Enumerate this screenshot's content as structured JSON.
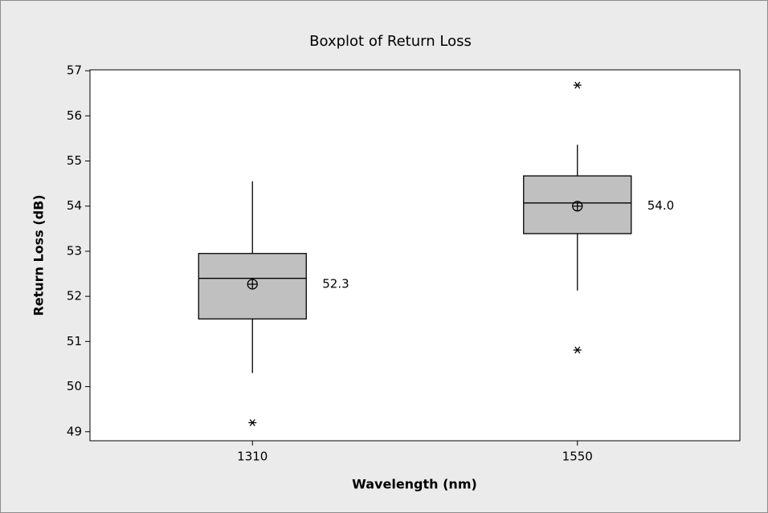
{
  "chart_data": {
    "type": "boxplot",
    "title": "Boxplot of Return Loss",
    "xlabel": "Wavelength (nm)",
    "ylabel": "Return Loss (dB)",
    "categories": [
      "1310",
      "1550"
    ],
    "whisker_low": [
      50.3,
      52.13
    ],
    "q1": [
      51.5,
      53.39
    ],
    "median": [
      52.4,
      54.07
    ],
    "q3": [
      52.95,
      54.67
    ],
    "whisker_high": [
      54.55,
      55.36
    ],
    "outliers": [
      [
        49.2
      ],
      [
        56.68,
        50.81
      ]
    ],
    "values": [
      52.27,
      54.0
    ],
    "value_labels": [
      "52.3",
      "54.0"
    ],
    "color": "#c0c0c0",
    "ylim": [
      48.8,
      57.02
    ],
    "yticks": [
      49,
      50,
      51,
      52,
      53,
      54,
      55,
      56,
      57
    ]
  }
}
